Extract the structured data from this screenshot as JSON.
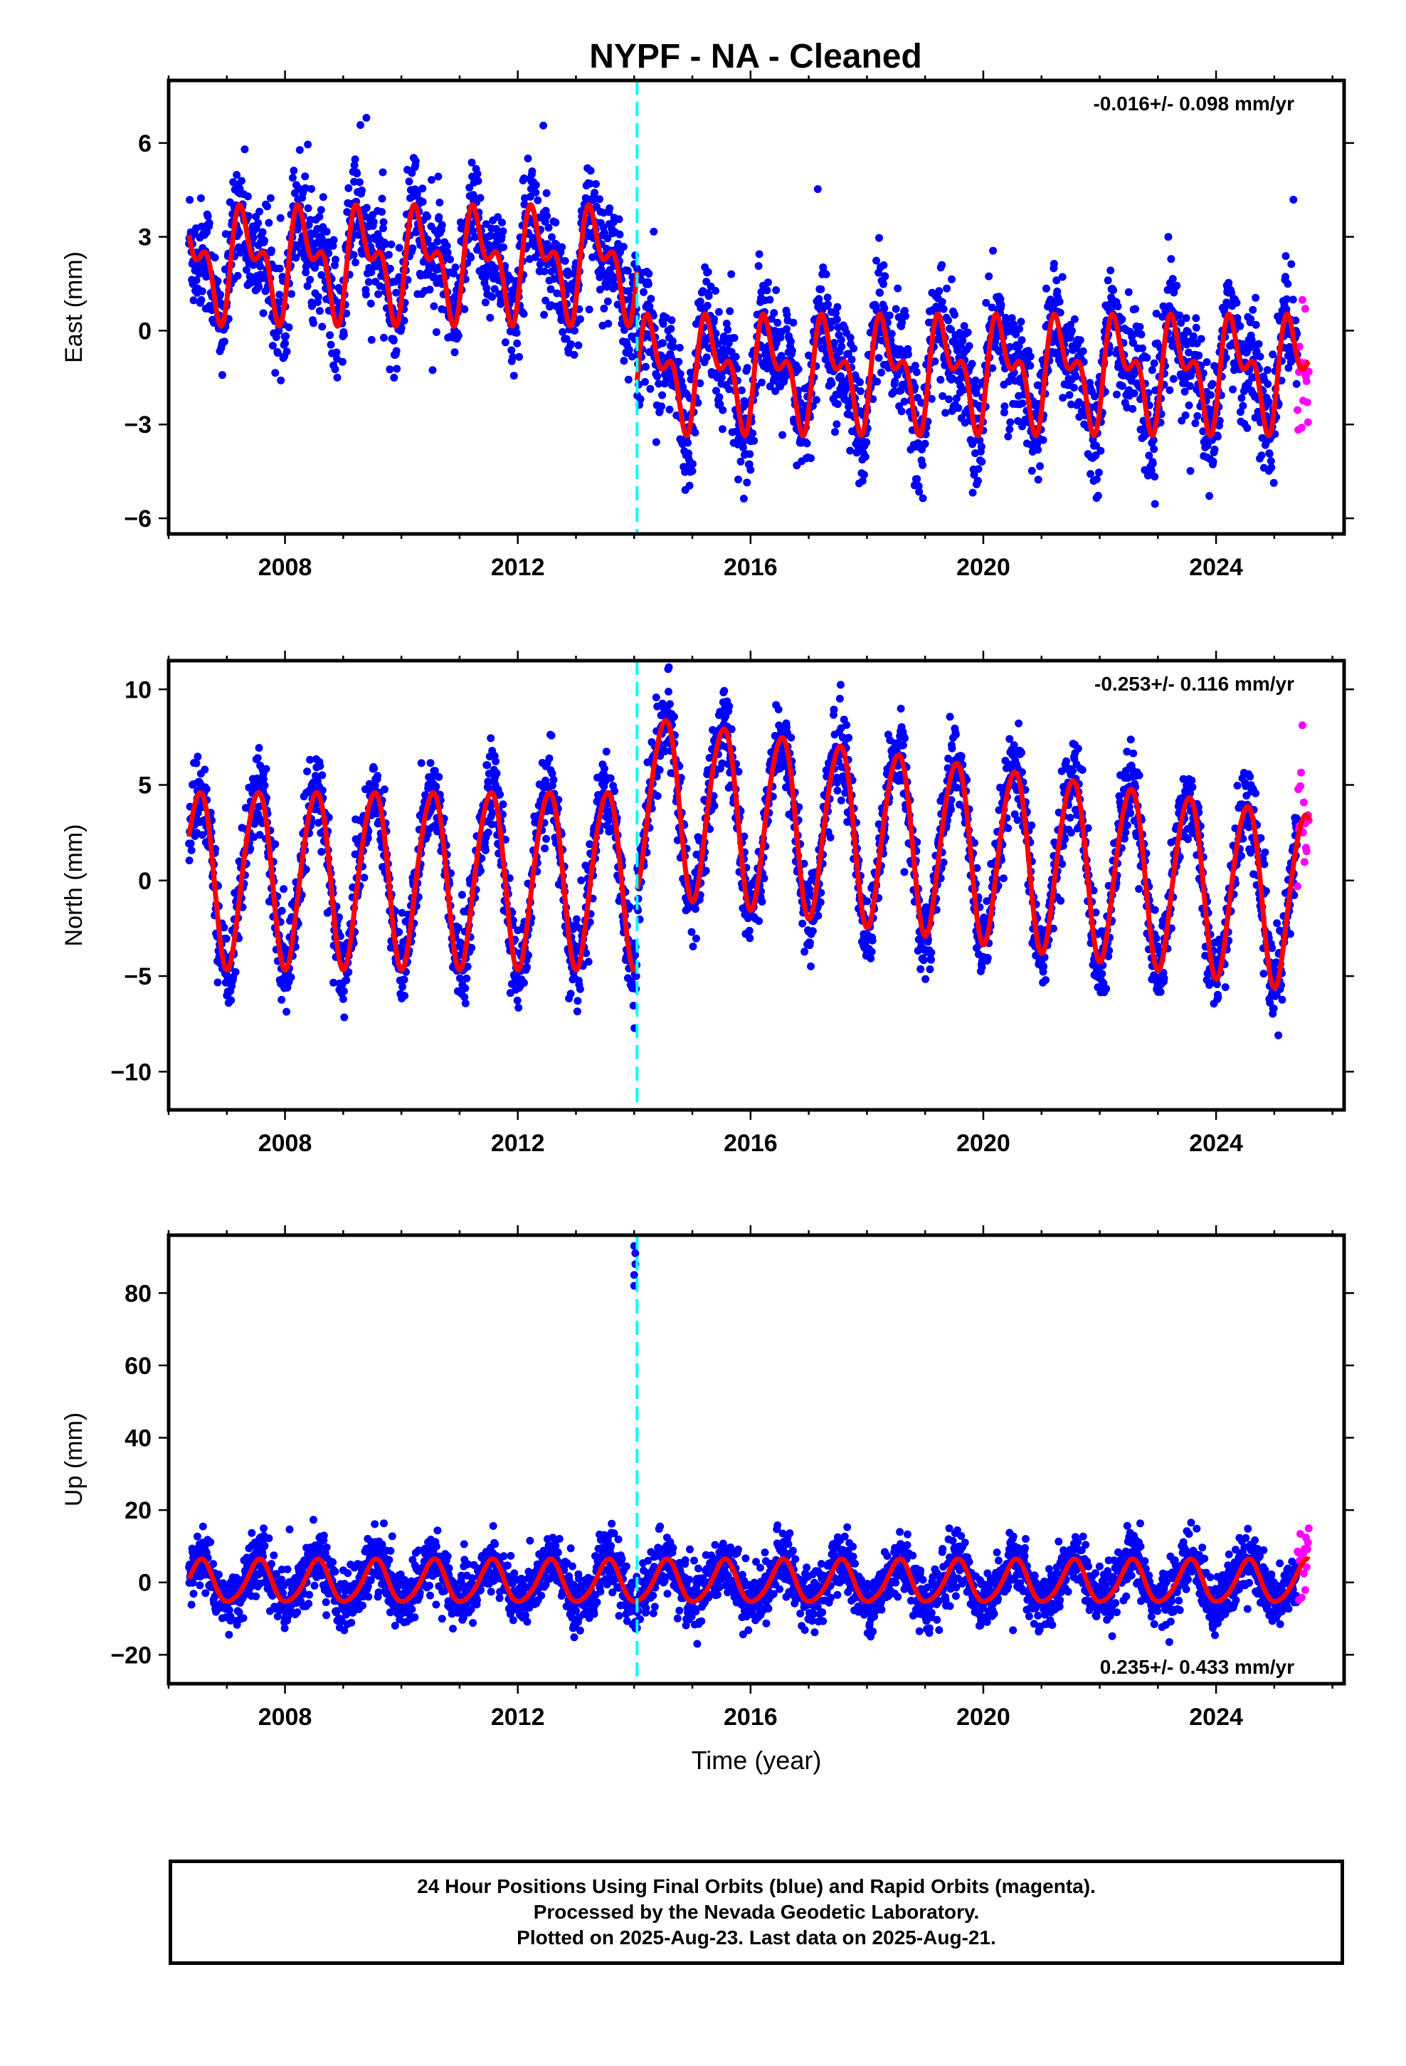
{
  "title": "NYPF  - NA - Cleaned",
  "footer": {
    "line1": "24 Hour Positions Using Final Orbits (blue) and Rapid Orbits (magenta).",
    "line2": "Processed by the Nevada Geodetic Laboratory.",
    "line3": "Plotted on 2025-Aug-23. Last data on 2025-Aug-21."
  },
  "colors": {
    "final_orbits": "#0000ff",
    "rapid_orbits": "#ff00ff",
    "model": "#ff0000",
    "equipment_change": "#00ffff"
  },
  "chart_data": [
    {
      "type": "scatter",
      "panel": "east",
      "xlabel": "",
      "ylabel": "East (mm)",
      "rate_text": "-0.016+/- 0.098 mm/yr",
      "xlim": [
        2006.0,
        2026.2
      ],
      "ylim": [
        -6.5,
        8.0
      ],
      "x_ticks": [
        2008,
        2012,
        2016,
        2020,
        2024
      ],
      "y_ticks": [
        -6,
        -3,
        0,
        3,
        6
      ],
      "grid": false,
      "equipment_change_year": 2014.05,
      "data_start": 2006.35,
      "data_end": 2025.6,
      "rapid_start": 2025.4,
      "model": {
        "offsets_before": 2.2,
        "offsets_after": -1.3,
        "annual_amp": 1.35,
        "annual_phase": 0.33,
        "semiannual_amp": 0.9,
        "semiannual_phase": 0.18,
        "noise_sd": 0.9
      }
    },
    {
      "type": "scatter",
      "panel": "north",
      "xlabel": "",
      "ylabel": "North (mm)",
      "rate_text": "-0.253+/- 0.116 mm/yr",
      "xlim": [
        2006.0,
        2026.2
      ],
      "ylim": [
        -12.0,
        11.5
      ],
      "x_ticks": [
        2008,
        2012,
        2016,
        2020,
        2024
      ],
      "y_ticks": [
        -10,
        -5,
        0,
        5,
        10
      ],
      "grid": false,
      "equipment_change_year": 2014.05,
      "data_start": 2006.35,
      "data_end": 2025.6,
      "rapid_start": 2025.4,
      "model": {
        "offsets_before": 0.2,
        "offsets_after": 4.2,
        "annual_amp": 4.6,
        "annual_phase": 0.52,
        "semiannual_amp": 0.4,
        "semiannual_phase": 0.2,
        "trend_after": -0.45,
        "noise_sd": 1.1
      }
    },
    {
      "type": "scatter",
      "panel": "up",
      "xlabel": "Time (year)",
      "ylabel": "Up (mm)",
      "rate_text": "0.235+/- 0.433 mm/yr",
      "xlim": [
        2006.0,
        2026.2
      ],
      "ylim": [
        -28,
        96
      ],
      "x_ticks": [
        2008,
        2012,
        2016,
        2020,
        2024
      ],
      "y_ticks": [
        -20,
        0,
        20,
        40,
        60,
        80
      ],
      "grid": false,
      "equipment_change_year": 2014.05,
      "data_start": 2006.35,
      "data_end": 2025.6,
      "rapid_start": 2025.4,
      "outliers": [
        [
          2014.0,
          82
        ],
        [
          2014.0,
          85
        ],
        [
          2014.02,
          88
        ],
        [
          2014.02,
          91
        ],
        [
          2014.0,
          93
        ]
      ],
      "model": {
        "offsets_before": 0.0,
        "offsets_after": 0.0,
        "annual_amp": 5.8,
        "annual_phase": 0.55,
        "semiannual_amp": 0.8,
        "semiannual_phase": 0.1,
        "noise_sd": 4.0
      }
    }
  ]
}
